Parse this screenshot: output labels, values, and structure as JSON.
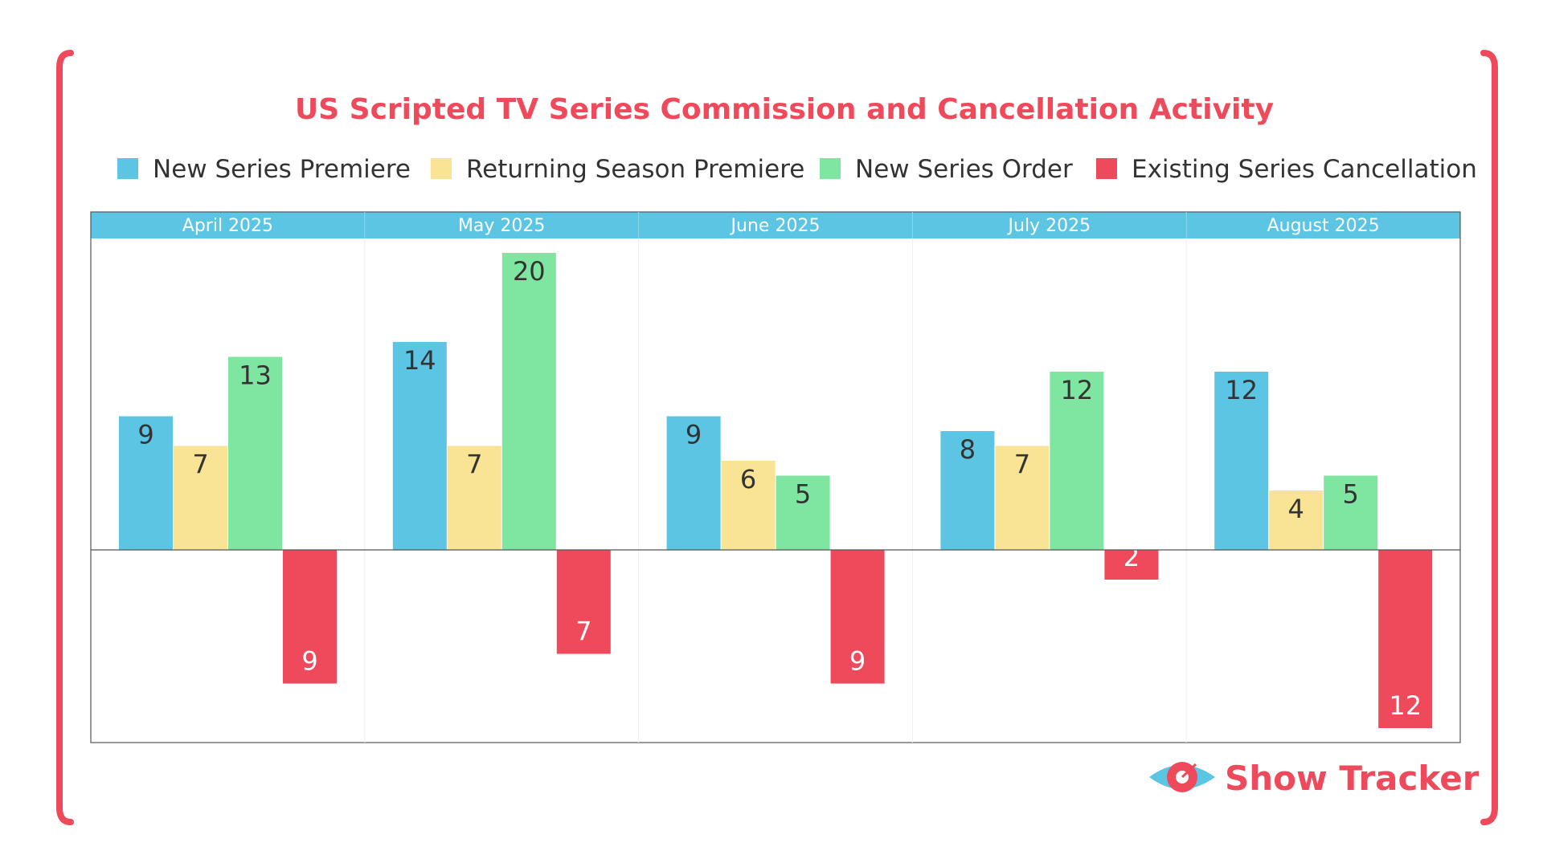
{
  "chart_data": {
    "type": "bar",
    "title": "US Scripted TV Series Commission and Cancellation Activity",
    "categories": [
      "April 2025",
      "May 2025",
      "June 2025",
      "July 2025",
      "August 2025"
    ],
    "series": [
      {
        "name": "New Series Premiere",
        "color": "#5BC5E3",
        "values": [
          9,
          14,
          9,
          8,
          12
        ]
      },
      {
        "name": "Returning Season Premiere",
        "color": "#F9E394",
        "values": [
          7,
          7,
          6,
          7,
          4
        ]
      },
      {
        "name": "New Series Order",
        "color": "#7FE6A1",
        "values": [
          13,
          20,
          5,
          12,
          5
        ]
      },
      {
        "name": "Existing Series Cancellation",
        "color": "#EE4A5B",
        "values": [
          -9,
          -7,
          -9,
          -2,
          -12
        ]
      }
    ],
    "ylim": [
      -13,
      21
    ],
    "xlabel": "",
    "ylabel": "",
    "legend": "top",
    "header_color": "#5BC5E3"
  },
  "brand": {
    "name": "Show Tracker",
    "color": "#EE4A5B",
    "icon": "eye-icon"
  }
}
